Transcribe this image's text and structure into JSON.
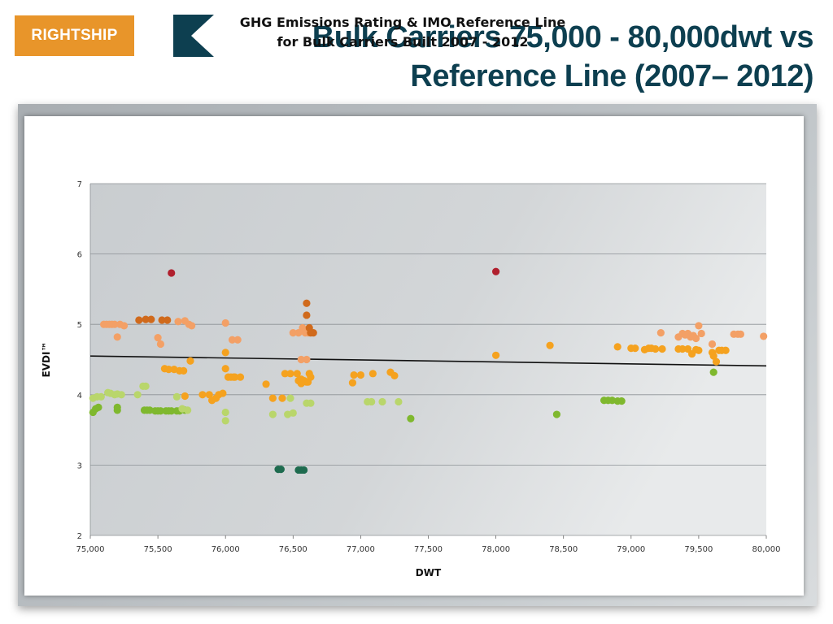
{
  "logo": {
    "text": "RIGHTSHIP"
  },
  "slide": {
    "title_line1": "Bulk Carriers 75,000 - 80,000dwt vs",
    "title_line2": "Reference Line (2007– 2012)"
  },
  "colors": {
    "title": "#0d3f50",
    "logo_bg": "#e8952a",
    "A": "#1e6b4f",
    "B": "#7fb82e",
    "C": "#b9d66b",
    "D": "#f5a21f",
    "E": "#f3a066",
    "F": "#d06a1c",
    "G": "#b0202e"
  },
  "chart_data": {
    "type": "scatter",
    "title": [
      "GHG Emissions Rating & IMO Reference Line",
      "for Bulk Carriers Built 2007 - 2012"
    ],
    "xlabel": "DWT",
    "ylabel": "EVDI™",
    "xlim": [
      75000,
      80000
    ],
    "ylim": [
      2,
      7
    ],
    "xticks": [
      "75,000",
      "75,500",
      "76,000",
      "76,500",
      "77,000",
      "77,500",
      "78,000",
      "78,500",
      "79,000",
      "79,500",
      "80,000"
    ],
    "yticks": [
      "2",
      "3",
      "4",
      "5",
      "6",
      "7"
    ],
    "grid": true,
    "reference_line": [
      [
        75000,
        4.55
      ],
      [
        80000,
        4.41
      ]
    ],
    "points": [
      {
        "color": "A",
        "xy": [
          [
            76390,
            2.94
          ],
          [
            76410,
            2.94
          ],
          [
            76540,
            2.93
          ],
          [
            76560,
            2.93
          ],
          [
            76580,
            2.93
          ]
        ]
      },
      {
        "color": "B",
        "xy": [
          [
            75020,
            3.75
          ],
          [
            75040,
            3.8
          ],
          [
            75060,
            3.82
          ],
          [
            75200,
            3.78
          ],
          [
            75200,
            3.82
          ],
          [
            75400,
            3.78
          ],
          [
            75420,
            3.78
          ],
          [
            75440,
            3.78
          ],
          [
            75480,
            3.77
          ],
          [
            75500,
            3.77
          ],
          [
            75520,
            3.77
          ],
          [
            75560,
            3.77
          ],
          [
            75580,
            3.77
          ],
          [
            75600,
            3.77
          ],
          [
            75640,
            3.77
          ],
          [
            75660,
            3.77
          ],
          [
            75700,
            3.78
          ],
          [
            77370,
            3.66
          ],
          [
            78450,
            3.72
          ],
          [
            78800,
            3.92
          ],
          [
            78830,
            3.92
          ],
          [
            78860,
            3.92
          ],
          [
            78900,
            3.91
          ],
          [
            78930,
            3.91
          ],
          [
            79610,
            4.32
          ]
        ]
      },
      {
        "color": "C",
        "xy": [
          [
            75020,
            3.95
          ],
          [
            75050,
            3.97
          ],
          [
            75080,
            3.97
          ],
          [
            75130,
            4.03
          ],
          [
            75150,
            4.02
          ],
          [
            75180,
            4.0
          ],
          [
            75200,
            4.01
          ],
          [
            75230,
            4.0
          ],
          [
            75350,
            4.0
          ],
          [
            75390,
            4.12
          ],
          [
            75410,
            4.12
          ],
          [
            75640,
            3.97
          ],
          [
            75680,
            3.8
          ],
          [
            75720,
            3.78
          ],
          [
            76000,
            3.75
          ],
          [
            76000,
            3.63
          ],
          [
            76350,
            3.72
          ],
          [
            76460,
            3.72
          ],
          [
            76500,
            3.74
          ],
          [
            76480,
            3.95
          ],
          [
            76600,
            3.88
          ],
          [
            76630,
            3.88
          ],
          [
            77050,
            3.9
          ],
          [
            77080,
            3.9
          ],
          [
            77160,
            3.9
          ],
          [
            77280,
            3.9
          ]
        ]
      },
      {
        "color": "D",
        "xy": [
          [
            75550,
            4.37
          ],
          [
            75580,
            4.36
          ],
          [
            75620,
            4.36
          ],
          [
            75660,
            4.34
          ],
          [
            75690,
            4.34
          ],
          [
            75700,
            3.98
          ],
          [
            75740,
            4.48
          ],
          [
            75830,
            4.0
          ],
          [
            75880,
            4.0
          ],
          [
            75900,
            3.92
          ],
          [
            75930,
            3.95
          ],
          [
            75950,
            4.0
          ],
          [
            75980,
            4.02
          ],
          [
            76000,
            4.37
          ],
          [
            76000,
            4.6
          ],
          [
            76020,
            4.25
          ],
          [
            76040,
            4.25
          ],
          [
            76060,
            4.25
          ],
          [
            76070,
            4.25
          ],
          [
            76110,
            4.25
          ],
          [
            76300,
            4.15
          ],
          [
            76350,
            3.95
          ],
          [
            76420,
            3.95
          ],
          [
            76440,
            4.3
          ],
          [
            76480,
            4.3
          ],
          [
            76530,
            4.3
          ],
          [
            76540,
            4.2
          ],
          [
            76560,
            4.22
          ],
          [
            76560,
            4.16
          ],
          [
            76580,
            4.2
          ],
          [
            76600,
            4.18
          ],
          [
            76610,
            4.18
          ],
          [
            76620,
            4.3
          ],
          [
            76630,
            4.25
          ],
          [
            76940,
            4.17
          ],
          [
            76950,
            4.28
          ],
          [
            77000,
            4.28
          ],
          [
            77090,
            4.3
          ],
          [
            77220,
            4.32
          ],
          [
            77250,
            4.27
          ],
          [
            78000,
            4.56
          ],
          [
            78400,
            4.7
          ],
          [
            78900,
            4.68
          ],
          [
            79000,
            4.66
          ],
          [
            79030,
            4.66
          ],
          [
            79100,
            4.64
          ],
          [
            79130,
            4.66
          ],
          [
            79150,
            4.66
          ],
          [
            79180,
            4.65
          ],
          [
            79230,
            4.65
          ],
          [
            79350,
            4.65
          ],
          [
            79380,
            4.65
          ],
          [
            79420,
            4.65
          ],
          [
            79450,
            4.58
          ],
          [
            79480,
            4.64
          ],
          [
            79500,
            4.63
          ],
          [
            79600,
            4.6
          ],
          [
            79610,
            4.55
          ],
          [
            79630,
            4.47
          ],
          [
            79650,
            4.63
          ],
          [
            79670,
            4.63
          ],
          [
            79700,
            4.63
          ]
        ]
      },
      {
        "color": "E",
        "xy": [
          [
            75100,
            5.0
          ],
          [
            75120,
            5.0
          ],
          [
            75140,
            5.0
          ],
          [
            75160,
            5.0
          ],
          [
            75180,
            5.0
          ],
          [
            75200,
            4.82
          ],
          [
            75220,
            5.0
          ],
          [
            75250,
            4.98
          ],
          [
            75500,
            4.81
          ],
          [
            75520,
            4.72
          ],
          [
            75650,
            5.04
          ],
          [
            75700,
            5.05
          ],
          [
            75730,
            5.0
          ],
          [
            75750,
            4.98
          ],
          [
            76000,
            5.02
          ],
          [
            76050,
            4.78
          ],
          [
            76090,
            4.78
          ],
          [
            76500,
            4.88
          ],
          [
            76540,
            4.88
          ],
          [
            76570,
            4.95
          ],
          [
            76590,
            4.88
          ],
          [
            76610,
            4.88
          ],
          [
            76560,
            4.5
          ],
          [
            76600,
            4.5
          ],
          [
            79220,
            4.88
          ],
          [
            79350,
            4.82
          ],
          [
            79380,
            4.87
          ],
          [
            79400,
            4.85
          ],
          [
            79420,
            4.87
          ],
          [
            79440,
            4.82
          ],
          [
            79460,
            4.84
          ],
          [
            79480,
            4.8
          ],
          [
            79500,
            4.98
          ],
          [
            79520,
            4.87
          ],
          [
            79600,
            4.72
          ],
          [
            79760,
            4.86
          ],
          [
            79790,
            4.86
          ],
          [
            79810,
            4.86
          ],
          [
            79980,
            4.83
          ]
        ]
      },
      {
        "color": "F",
        "xy": [
          [
            75360,
            5.06
          ],
          [
            75410,
            5.07
          ],
          [
            75450,
            5.07
          ],
          [
            75530,
            5.06
          ],
          [
            75570,
            5.06
          ],
          [
            76600,
            5.3
          ],
          [
            76600,
            5.13
          ],
          [
            76620,
            4.95
          ],
          [
            76630,
            4.88
          ],
          [
            76650,
            4.88
          ]
        ]
      },
      {
        "color": "G",
        "xy": [
          [
            75600,
            5.73
          ],
          [
            78000,
            5.75
          ]
        ]
      }
    ]
  }
}
